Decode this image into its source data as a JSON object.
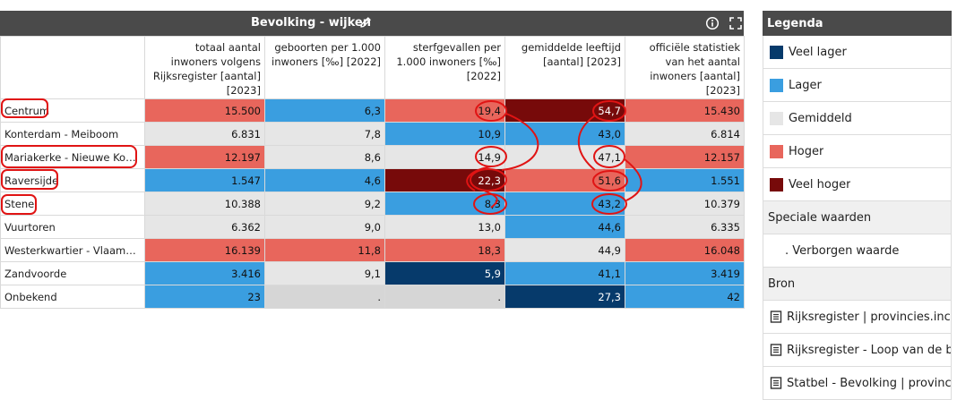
{
  "panel": {
    "title": "Bevolking - wijken",
    "icons": {
      "edit": "pencil-icon",
      "info": "info-icon",
      "expand": "fullscreen-icon"
    }
  },
  "table": {
    "columns": [
      "totaal aantal inwoners volgens Rijksregister [aantal] [2023]",
      "geboorten per 1.000 inwoners [‰] [2022]",
      "sterfgevallen per 1.000 inwoners [‰] [2022]",
      "gemiddelde leeftijd [aantal] [2023]",
      "officiële statistiek van het aantal inwoners [aantal] [2023]"
    ],
    "rows": [
      {
        "label": "Centrum",
        "values": [
          "15.500",
          "6,3",
          "19,4",
          "54,7",
          "15.430"
        ]
      },
      {
        "label": "Konterdam - Meiboom",
        "values": [
          "6.831",
          "7,8",
          "10,9",
          "43,0",
          "6.814"
        ]
      },
      {
        "label": "Mariakerke - Nieuwe Koers",
        "values": [
          "12.197",
          "8,6",
          "14,9",
          "47,1",
          "12.157"
        ]
      },
      {
        "label": "Raversijde",
        "values": [
          "1.547",
          "4,6",
          "22,3",
          "51,6",
          "1.551"
        ]
      },
      {
        "label": "Stene",
        "values": [
          "10.388",
          "9,2",
          "8,3",
          "43,2",
          "10.379"
        ]
      },
      {
        "label": "Vuurtoren",
        "values": [
          "6.362",
          "9,0",
          "13,0",
          "44,6",
          "6.335"
        ]
      },
      {
        "label": "Westerkwartier - Vlaams Pl...",
        "values": [
          "16.139",
          "11,8",
          "18,3",
          "44,9",
          "16.048"
        ]
      },
      {
        "label": "Zandvoorde",
        "values": [
          "3.416",
          "9,1",
          "5,9",
          "41,1",
          "3.419"
        ]
      },
      {
        "label": "Onbekend",
        "values": [
          "23",
          ".",
          ".",
          "27,3",
          "42"
        ]
      }
    ],
    "cell_classes": [
      [
        "hoger",
        "lager",
        "hoger",
        "veel_hoger",
        "hoger"
      ],
      [
        "gemiddeld",
        "gemiddeld",
        "lager",
        "lager",
        "gemiddeld"
      ],
      [
        "hoger",
        "gemiddeld",
        "gemiddeld",
        "gemiddeld",
        "hoger"
      ],
      [
        "lager",
        "lager",
        "veel_hoger",
        "hoger",
        "lager"
      ],
      [
        "gemiddeld",
        "gemiddeld",
        "lager",
        "lager",
        "gemiddeld"
      ],
      [
        "gemiddeld",
        "gemiddeld",
        "gemiddeld",
        "lager",
        "gemiddeld"
      ],
      [
        "hoger",
        "hoger",
        "hoger",
        "gemiddeld",
        "hoger"
      ],
      [
        "lager",
        "gemiddeld",
        "veel_lager",
        "lager",
        "lager"
      ],
      [
        "lager",
        "verborgen",
        "verborgen",
        "veel_lager",
        "lager"
      ]
    ]
  },
  "colors": {
    "veel_lager": "#063a6b",
    "lager": "#3a9ee0",
    "gemiddeld": "#e6e6e6",
    "hoger": "#e8665c",
    "veel_hoger": "#770a0a",
    "verborgen": "#d6d6d6",
    "annotation": "#e01414"
  },
  "legend": {
    "title": "Legenda",
    "items": [
      {
        "label": "Veel lager",
        "key": "veel_lager"
      },
      {
        "label": "Lager",
        "key": "lager"
      },
      {
        "label": "Gemiddeld",
        "key": "gemiddeld"
      },
      {
        "label": "Hoger",
        "key": "hoger"
      },
      {
        "label": "Veel hoger",
        "key": "veel_hoger"
      }
    ],
    "special_title": "Speciale waarden",
    "special_item": ". Verborgen waarde",
    "source_title": "Bron",
    "sources": [
      "Rijksregister | provincies.incijfers.be",
      "Rijksregister - Loop van de bevolking",
      "Statbel - Bevolking | provincies.incijfers.be"
    ]
  }
}
